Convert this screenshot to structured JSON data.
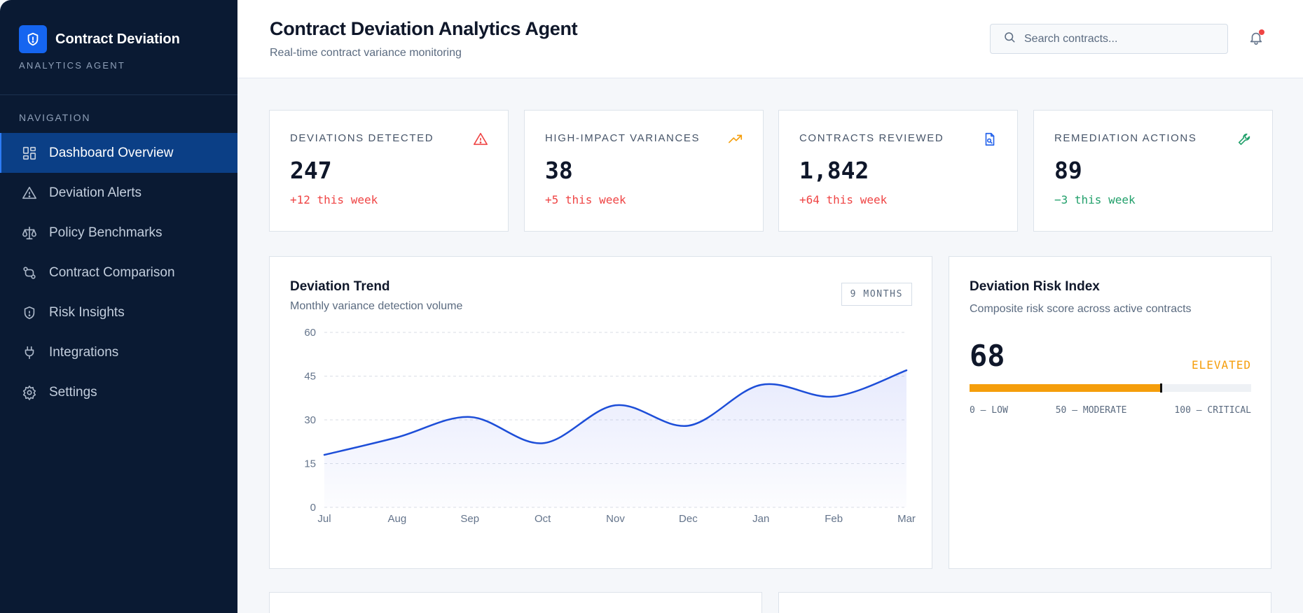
{
  "sidebar": {
    "brand_title": "Contract Deviation",
    "brand_subtitle": "ANALYTICS AGENT",
    "nav_heading": "NAVIGATION",
    "items": [
      {
        "label": "Dashboard Overview",
        "icon": "grid-icon",
        "active": true
      },
      {
        "label": "Deviation Alerts",
        "icon": "warning-triangle-icon"
      },
      {
        "label": "Policy Benchmarks",
        "icon": "scale-icon"
      },
      {
        "label": "Contract Comparison",
        "icon": "compare-arrows-icon"
      },
      {
        "label": "Risk Insights",
        "icon": "shield-icon"
      },
      {
        "label": "Integrations",
        "icon": "plug-icon"
      },
      {
        "label": "Settings",
        "icon": "gear-icon"
      }
    ]
  },
  "header": {
    "title": "Contract Deviation Analytics Agent",
    "subtitle": "Real-time contract variance monitoring",
    "search_placeholder": "Search contracts..."
  },
  "kpis": [
    {
      "label": "DEVIATIONS DETECTED",
      "value": "247",
      "delta": "+12 this week",
      "icon": "warning-triangle-icon",
      "color": "#ef4444"
    },
    {
      "label": "HIGH-IMPACT VARIANCES",
      "value": "38",
      "delta": "+5 this week",
      "icon": "trending-up-icon",
      "color": "#f59e0b"
    },
    {
      "label": "CONTRACTS REVIEWED",
      "value": "1,842",
      "delta": "+64 this week",
      "icon": "document-search-icon",
      "color": "#2563eb"
    },
    {
      "label": "REMEDIATION ACTIONS",
      "value": "89",
      "delta": "−3 this week",
      "icon": "wrench-icon",
      "color": "#22a06b"
    }
  ],
  "trend": {
    "title": "Deviation Trend",
    "subtitle": "Monthly variance detection volume",
    "range_chip": "9 MONTHS"
  },
  "risk": {
    "title": "Deviation Risk Index",
    "subtitle": "Composite risk score across active contracts",
    "value": "68",
    "level": "ELEVATED",
    "score": 68,
    "scale": [
      "0 — LOW",
      "50 — MODERATE",
      "100 — CRITICAL"
    ],
    "color": "#f59e0b"
  },
  "chart_data": {
    "type": "area",
    "categories": [
      "Jul",
      "Aug",
      "Sep",
      "Oct",
      "Nov",
      "Dec",
      "Jan",
      "Feb",
      "Mar"
    ],
    "values": [
      18,
      24,
      31,
      22,
      35,
      28,
      42,
      38,
      47
    ],
    "ylim": [
      0,
      60
    ],
    "yticks": [
      0,
      15,
      30,
      45,
      60
    ],
    "grid": true,
    "line_color": "#1d4ed8"
  }
}
